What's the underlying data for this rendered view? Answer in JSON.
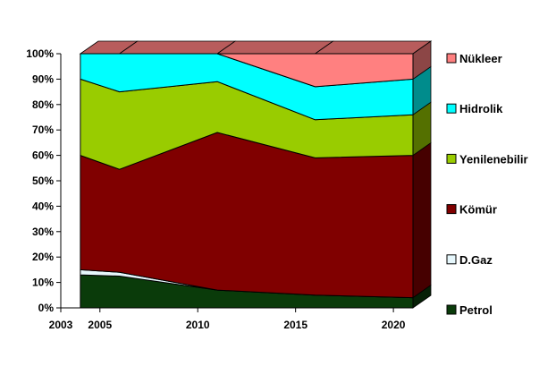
{
  "chart_data": {
    "type": "area",
    "stacked": true,
    "percent": true,
    "three_d": true,
    "title": "",
    "xlabel": "",
    "ylabel": "",
    "x": [
      2004,
      2006,
      2011,
      2016,
      2021
    ],
    "x_ticks": [
      "2003",
      "2005",
      "2010",
      "2015",
      "2020"
    ],
    "x_range": [
      2003,
      2021
    ],
    "y_ticks": [
      "0%",
      "10%",
      "20%",
      "30%",
      "40%",
      "50%",
      "60%",
      "70%",
      "80%",
      "90%",
      "100%"
    ],
    "ylim": [
      0,
      100
    ],
    "grid": false,
    "legend_position": "right",
    "series": [
      {
        "name": "Petrol",
        "color": "#0a3b0a",
        "values": [
          13,
          12.5,
          7,
          5,
          4
        ]
      },
      {
        "name": "D.Gaz",
        "color": "#e6f7fc",
        "values": [
          2,
          1.5,
          0,
          0,
          0
        ]
      },
      {
        "name": "Kömür",
        "color": "#800000",
        "values": [
          45,
          40.5,
          62,
          54,
          56
        ]
      },
      {
        "name": "Yenilenebilir",
        "color": "#99cc00",
        "values": [
          30,
          30.5,
          20,
          15,
          16
        ]
      },
      {
        "name": "Hidrolik",
        "color": "#00ffff",
        "values": [
          10,
          15,
          11,
          13,
          14
        ]
      },
      {
        "name": "Nükleer",
        "color": "#ff8080",
        "values": [
          0,
          0,
          0,
          13,
          10
        ]
      }
    ]
  }
}
